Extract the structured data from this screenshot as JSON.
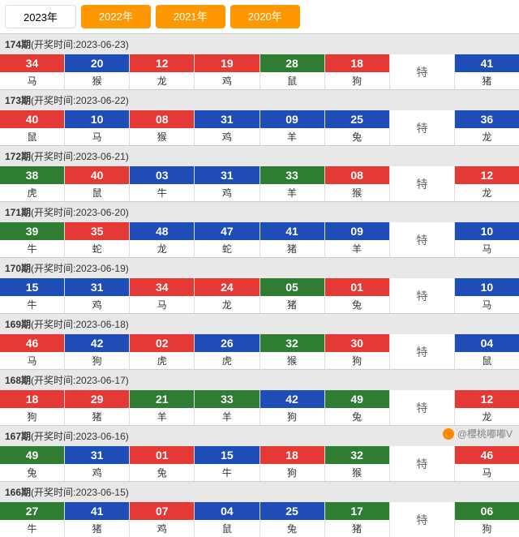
{
  "tabs": [
    {
      "label": "2023年",
      "active": true
    },
    {
      "label": "2022年",
      "active": false
    },
    {
      "label": "2021年",
      "active": false
    },
    {
      "label": "2020年",
      "active": false
    }
  ],
  "special_label": "特",
  "colors": {
    "red": "#e53935",
    "blue": "#1e4db7",
    "green": "#2e7d32",
    "tab_inactive": "#ff9800"
  },
  "periods": [
    {
      "no": "174",
      "date": "2023-06-23",
      "balls": [
        {
          "n": "34",
          "c": "red",
          "z": "马"
        },
        {
          "n": "20",
          "c": "blue",
          "z": "猴"
        },
        {
          "n": "12",
          "c": "red",
          "z": "龙"
        },
        {
          "n": "19",
          "c": "red",
          "z": "鸡"
        },
        {
          "n": "28",
          "c": "green",
          "z": "鼠"
        },
        {
          "n": "18",
          "c": "red",
          "z": "狗"
        }
      ],
      "special": {
        "n": "41",
        "c": "blue",
        "z": "猪"
      }
    },
    {
      "no": "173",
      "date": "2023-06-22",
      "balls": [
        {
          "n": "40",
          "c": "red",
          "z": "鼠"
        },
        {
          "n": "10",
          "c": "blue",
          "z": "马"
        },
        {
          "n": "08",
          "c": "red",
          "z": "猴"
        },
        {
          "n": "31",
          "c": "blue",
          "z": "鸡"
        },
        {
          "n": "09",
          "c": "blue",
          "z": "羊"
        },
        {
          "n": "25",
          "c": "blue",
          "z": "兔"
        }
      ],
      "special": {
        "n": "36",
        "c": "blue",
        "z": "龙"
      }
    },
    {
      "no": "172",
      "date": "2023-06-21",
      "balls": [
        {
          "n": "38",
          "c": "green",
          "z": "虎"
        },
        {
          "n": "40",
          "c": "red",
          "z": "鼠"
        },
        {
          "n": "03",
          "c": "blue",
          "z": "牛"
        },
        {
          "n": "31",
          "c": "blue",
          "z": "鸡"
        },
        {
          "n": "33",
          "c": "green",
          "z": "羊"
        },
        {
          "n": "08",
          "c": "red",
          "z": "猴"
        }
      ],
      "special": {
        "n": "12",
        "c": "red",
        "z": "龙"
      }
    },
    {
      "no": "171",
      "date": "2023-06-20",
      "balls": [
        {
          "n": "39",
          "c": "green",
          "z": "牛"
        },
        {
          "n": "35",
          "c": "red",
          "z": "蛇"
        },
        {
          "n": "48",
          "c": "blue",
          "z": "龙"
        },
        {
          "n": "47",
          "c": "blue",
          "z": "蛇"
        },
        {
          "n": "41",
          "c": "blue",
          "z": "猪"
        },
        {
          "n": "09",
          "c": "blue",
          "z": "羊"
        }
      ],
      "special": {
        "n": "10",
        "c": "blue",
        "z": "马"
      }
    },
    {
      "no": "170",
      "date": "2023-06-19",
      "balls": [
        {
          "n": "15",
          "c": "blue",
          "z": "牛"
        },
        {
          "n": "31",
          "c": "blue",
          "z": "鸡"
        },
        {
          "n": "34",
          "c": "red",
          "z": "马"
        },
        {
          "n": "24",
          "c": "red",
          "z": "龙"
        },
        {
          "n": "05",
          "c": "green",
          "z": "猪"
        },
        {
          "n": "01",
          "c": "red",
          "z": "兔"
        }
      ],
      "special": {
        "n": "10",
        "c": "blue",
        "z": "马"
      }
    },
    {
      "no": "169",
      "date": "2023-06-18",
      "balls": [
        {
          "n": "46",
          "c": "red",
          "z": "马"
        },
        {
          "n": "42",
          "c": "blue",
          "z": "狗"
        },
        {
          "n": "02",
          "c": "red",
          "z": "虎"
        },
        {
          "n": "26",
          "c": "blue",
          "z": "虎"
        },
        {
          "n": "32",
          "c": "green",
          "z": "猴"
        },
        {
          "n": "30",
          "c": "red",
          "z": "狗"
        }
      ],
      "special": {
        "n": "04",
        "c": "blue",
        "z": "鼠"
      }
    },
    {
      "no": "168",
      "date": "2023-06-17",
      "balls": [
        {
          "n": "18",
          "c": "red",
          "z": "狗"
        },
        {
          "n": "29",
          "c": "red",
          "z": "猪"
        },
        {
          "n": "21",
          "c": "green",
          "z": "羊"
        },
        {
          "n": "33",
          "c": "green",
          "z": "羊"
        },
        {
          "n": "42",
          "c": "blue",
          "z": "狗"
        },
        {
          "n": "49",
          "c": "green",
          "z": "兔"
        }
      ],
      "special": {
        "n": "12",
        "c": "red",
        "z": "龙"
      }
    },
    {
      "no": "167",
      "date": "2023-06-16",
      "balls": [
        {
          "n": "49",
          "c": "green",
          "z": "兔"
        },
        {
          "n": "31",
          "c": "blue",
          "z": "鸡"
        },
        {
          "n": "01",
          "c": "red",
          "z": "兔"
        },
        {
          "n": "15",
          "c": "blue",
          "z": "牛"
        },
        {
          "n": "18",
          "c": "red",
          "z": "狗"
        },
        {
          "n": "32",
          "c": "green",
          "z": "猴"
        }
      ],
      "special": {
        "n": "46",
        "c": "red",
        "z": "马"
      }
    },
    {
      "no": "166",
      "date": "2023-06-15",
      "balls": [
        {
          "n": "27",
          "c": "green",
          "z": "牛"
        },
        {
          "n": "41",
          "c": "blue",
          "z": "猪"
        },
        {
          "n": "07",
          "c": "red",
          "z": "鸡"
        },
        {
          "n": "04",
          "c": "blue",
          "z": "鼠"
        },
        {
          "n": "25",
          "c": "blue",
          "z": "兔"
        },
        {
          "n": "17",
          "c": "green",
          "z": "猪"
        }
      ],
      "special": {
        "n": "06",
        "c": "green",
        "z": "狗"
      }
    }
  ],
  "watermark": "@櫻桃嘟嘟V"
}
